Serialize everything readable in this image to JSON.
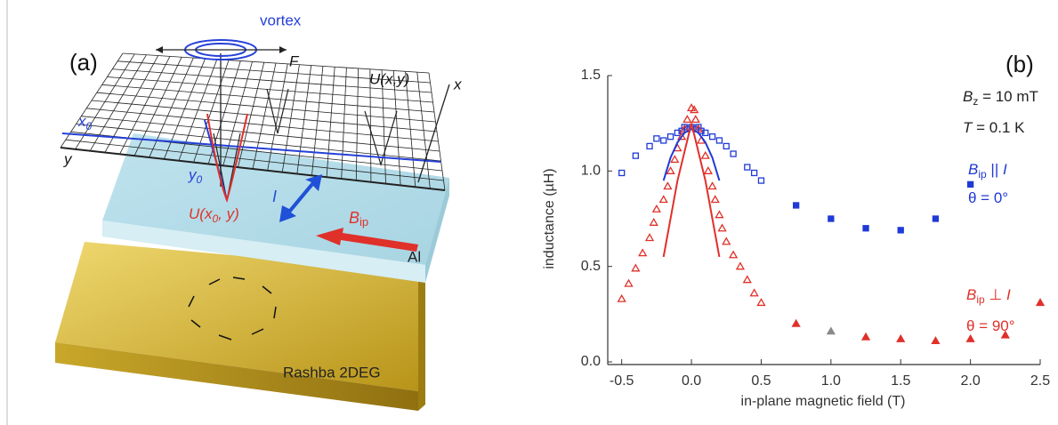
{
  "panel_a": {
    "label": "(a)",
    "vortex": "vortex",
    "force": "F",
    "potential": "U(x,y)",
    "x_axis": "x",
    "x0": {
      "main": "x",
      "sub": "0"
    },
    "y_axis": "y",
    "y0": {
      "main": "y",
      "sub": "0"
    },
    "cut": {
      "main": "U(x",
      "sub": "0",
      "tail": ", y)"
    },
    "current": "I",
    "field": {
      "main": "B",
      "sub": "ip"
    },
    "al": "Al",
    "substrate": "Rashba 2DEG"
  },
  "chart_data": {
    "type": "scatter",
    "panel_label": "(b)",
    "x_label": "in-plane magnetic field (T)",
    "y_label": "inductance (µH)",
    "xlim": [
      -0.6,
      2.5
    ],
    "ylim": [
      0,
      1.5
    ],
    "xticks": [
      -0.5,
      {
        "value": 0,
        "label": "0.0"
      },
      0.5,
      {
        "value": 1,
        "label": "1.0"
      },
      1.5,
      {
        "value": 2,
        "label": "2.0"
      },
      2.5
    ],
    "yticks": [
      {
        "value": 0,
        "label": "0.0"
      },
      0.5,
      {
        "value": 1,
        "label": "1.0"
      },
      1.5
    ],
    "series": [
      {
        "marker": "square",
        "filled": false,
        "color": "#1f3ad6",
        "x": [
          -0.5,
          -0.4,
          -0.3,
          -0.25,
          -0.2,
          -0.15,
          -0.1,
          -0.07,
          -0.05,
          -0.03,
          0,
          0.03,
          0.05,
          0.07,
          0.1,
          0.15,
          0.2,
          0.25,
          0.3,
          0.4,
          0.45,
          0.5
        ],
        "values": [
          0.99,
          1.08,
          1.13,
          1.17,
          1.16,
          1.18,
          1.2,
          1.21,
          1.23,
          1.22,
          1.23,
          1.22,
          1.23,
          1.21,
          1.2,
          1.18,
          1.16,
          1.13,
          1.09,
          1.02,
          0.99,
          0.95
        ]
      },
      {
        "marker": "square",
        "filled": true,
        "color": "#1f3ad6",
        "x": [
          0.75,
          1,
          1.25,
          1.5,
          1.75,
          2
        ],
        "values": [
          0.82,
          0.75,
          0.7,
          0.69,
          0.75,
          0.93
        ]
      },
      {
        "marker": "triangle",
        "filled": false,
        "color": "#e0302a",
        "x": [
          -0.5,
          -0.45,
          -0.4,
          -0.35,
          -0.3,
          -0.27,
          -0.25,
          -0.2,
          -0.17,
          -0.15,
          -0.12,
          -0.1,
          -0.07,
          -0.05,
          -0.03,
          0,
          0.02,
          0.03,
          0.05,
          0.07,
          0.1,
          0.12,
          0.15,
          0.17,
          0.2,
          0.22,
          0.25,
          0.3,
          0.35,
          0.4,
          0.45,
          0.5
        ],
        "values": [
          0.33,
          0.41,
          0.49,
          0.57,
          0.65,
          0.73,
          0.8,
          0.85,
          0.92,
          1.0,
          1.06,
          1.12,
          1.18,
          1.22,
          1.27,
          1.33,
          1.32,
          1.27,
          1.22,
          1.16,
          1.08,
          1.0,
          0.92,
          0.85,
          0.77,
          0.7,
          0.63,
          0.56,
          0.5,
          0.43,
          0.36,
          0.31
        ]
      },
      {
        "marker": "triangle",
        "filled": true,
        "color": "#e0302a",
        "x": [
          0.75,
          1.25,
          1.5,
          1.75,
          2,
          2.25,
          2.5
        ],
        "values": [
          0.2,
          0.13,
          0.12,
          0.11,
          0.12,
          0.14,
          0.31
        ]
      },
      {
        "marker": "triangle",
        "filled": true,
        "color": "#8a8a8a",
        "x": [
          1
        ],
        "values": [
          0.16
        ]
      },
      {
        "marker": "none",
        "line": true,
        "color": "#1f3ad6",
        "x": [
          -0.2,
          -0.15,
          -0.1,
          -0.05,
          0,
          0.05,
          0.1,
          0.15,
          0.2
        ],
        "values": [
          0.95,
          1.07,
          1.15,
          1.2,
          1.22,
          1.2,
          1.15,
          1.07,
          0.95
        ]
      },
      {
        "marker": "none",
        "line": true,
        "color": "#e0302a",
        "x": [
          -0.2,
          -0.1,
          0,
          0.1,
          0.2
        ],
        "values": [
          0.55,
          0.95,
          1.25,
          0.95,
          0.55
        ]
      }
    ],
    "annotations": [
      {
        "color": "#222222",
        "parts": [
          {
            "text": "B",
            "italic": true
          },
          {
            "text": "z",
            "sub": true
          },
          {
            "text": " = 10 mT"
          }
        ]
      },
      {
        "color": "#222222",
        "parts": [
          {
            "text": "T",
            "italic": true
          },
          {
            "text": " = 0.1 K"
          }
        ]
      },
      {
        "color": "#1f3ad6",
        "parts": [
          {
            "text": "B",
            "italic": true
          },
          {
            "text": "ip",
            "sub": true
          },
          {
            "text": " || "
          },
          {
            "text": "I",
            "italic": true
          }
        ]
      },
      {
        "color": "#1f3ad6",
        "parts": [
          {
            "text": "θ = 0°"
          }
        ]
      },
      {
        "color": "#e0302a",
        "parts": [
          {
            "text": "B",
            "italic": true
          },
          {
            "text": "ip",
            "sub": true
          },
          {
            "text": " ⊥ "
          },
          {
            "text": "I",
            "italic": true
          }
        ]
      },
      {
        "color": "#e0302a",
        "parts": [
          {
            "text": "θ = 90°"
          }
        ]
      }
    ]
  }
}
